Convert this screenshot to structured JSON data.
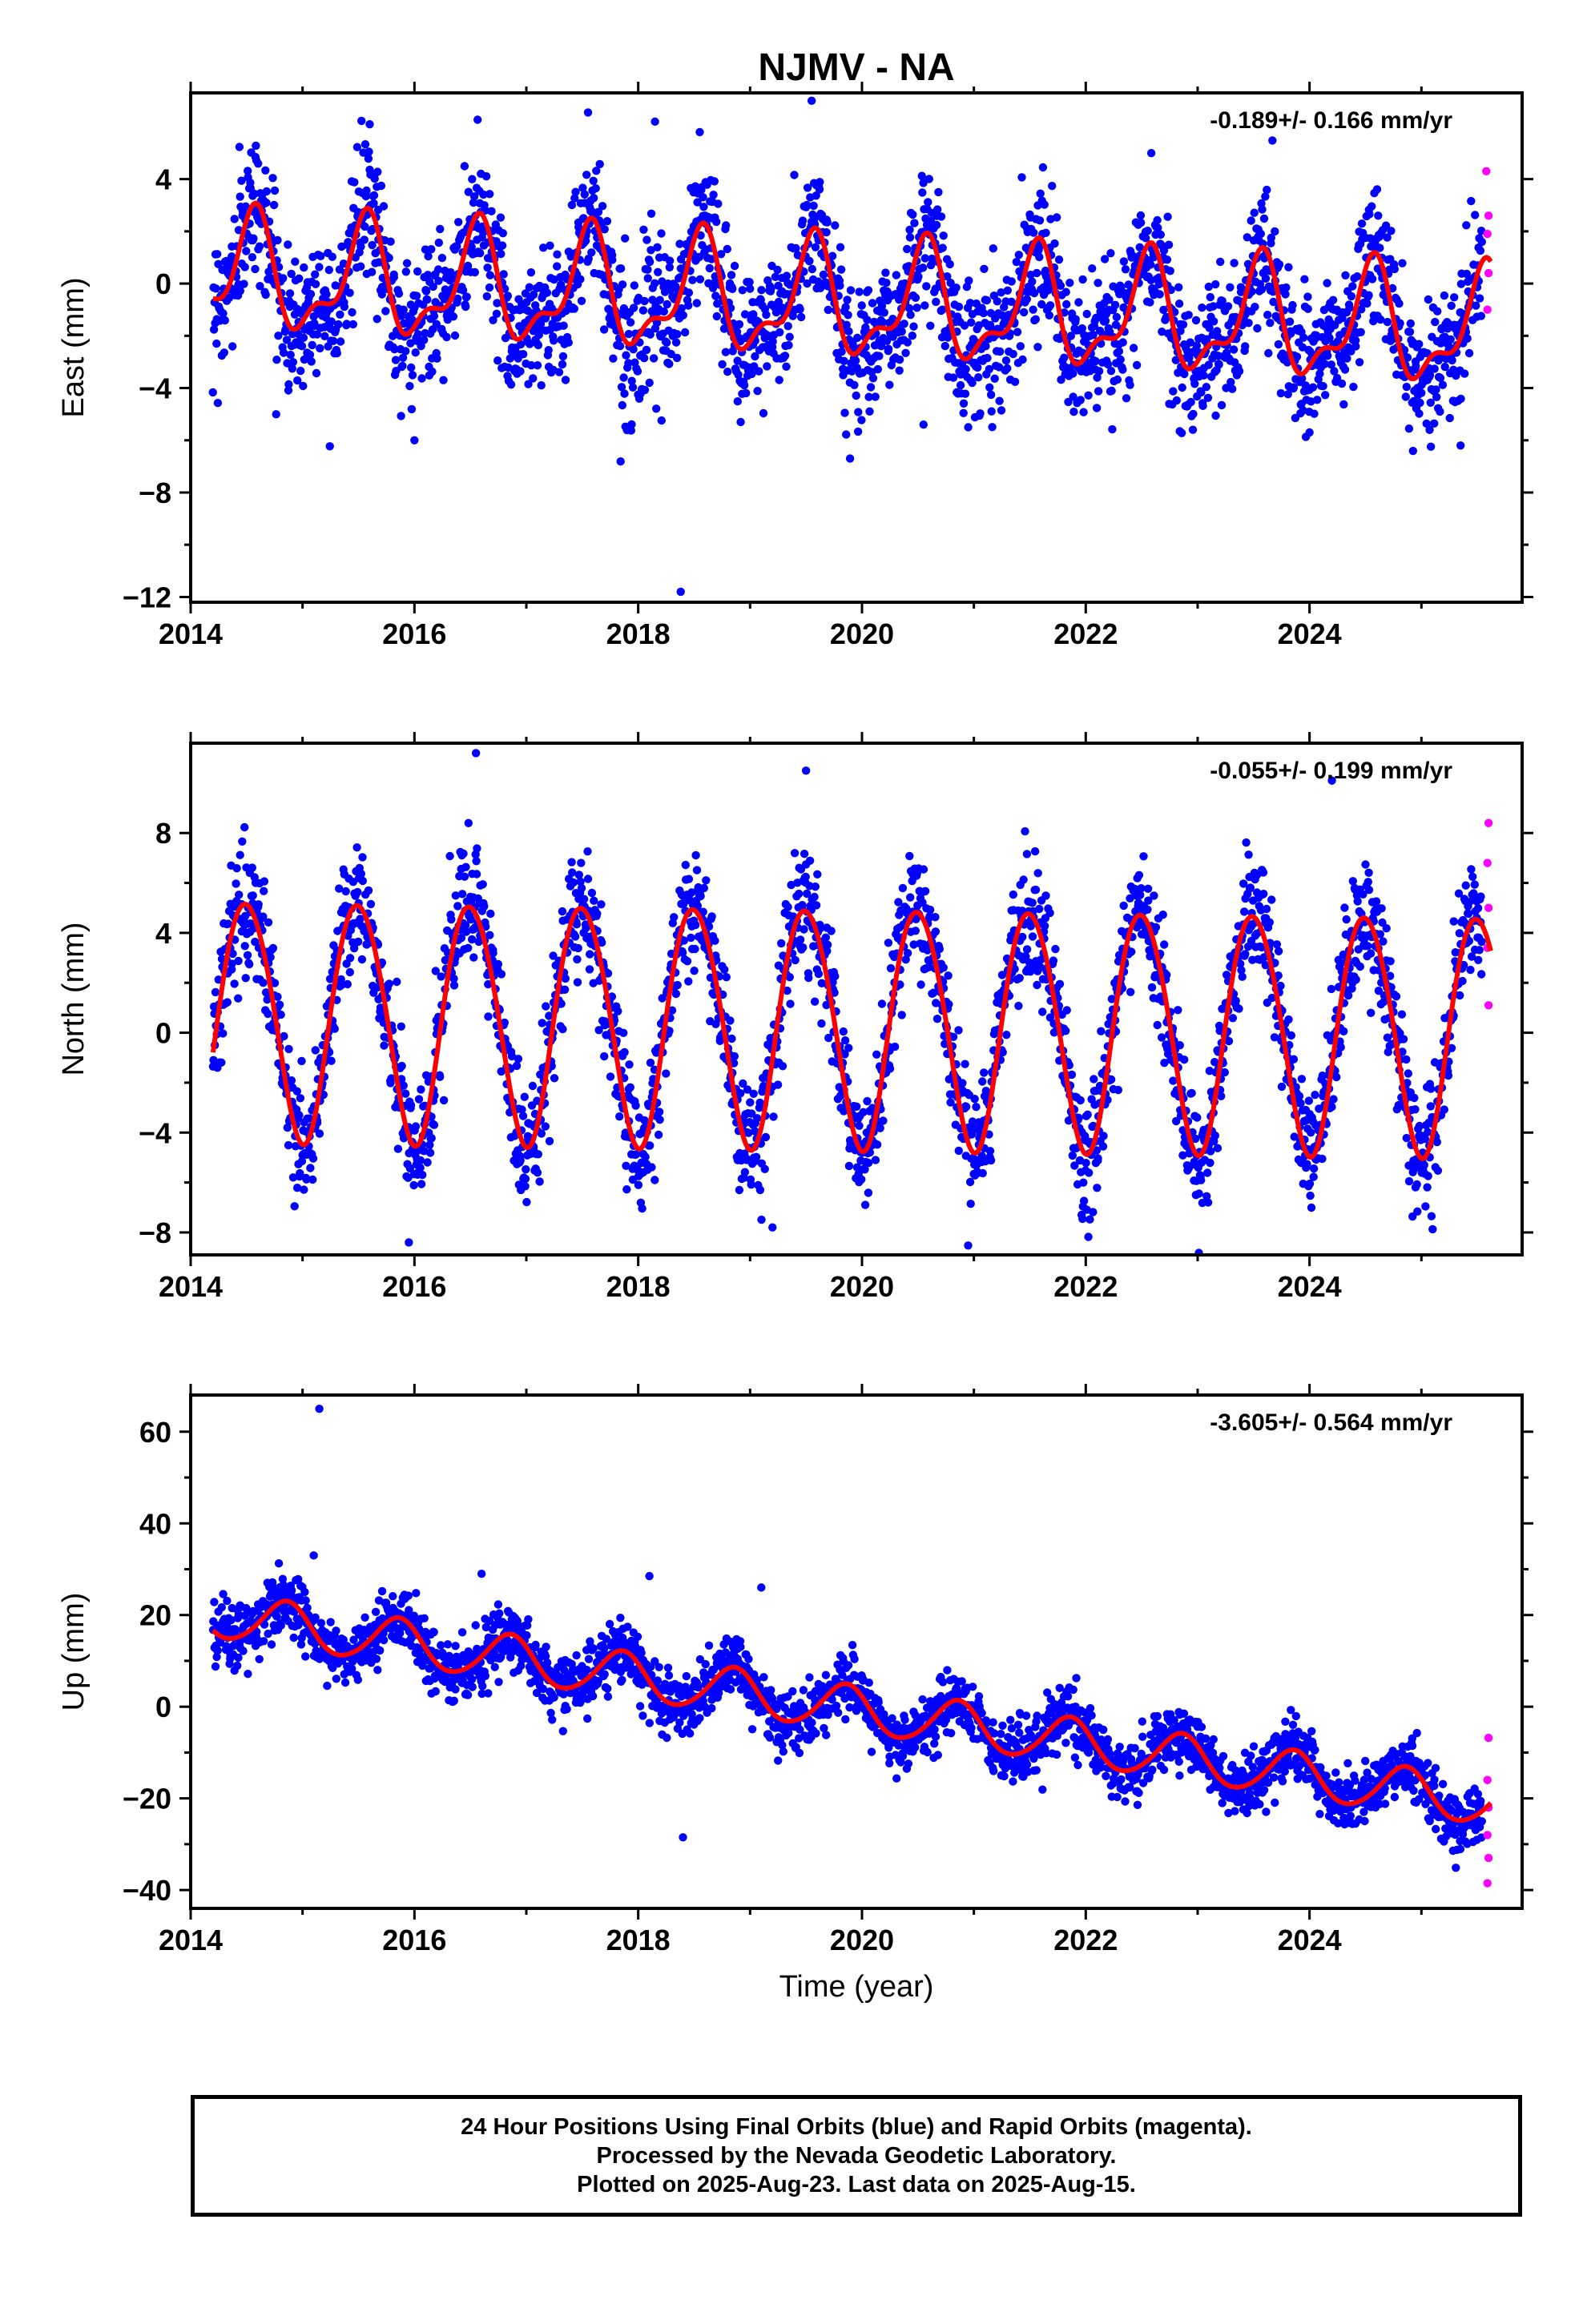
{
  "title": "NJMV - NA",
  "colors": {
    "final_orbits": "#0000ff",
    "rapid_orbits": "#ff00ff",
    "model_fit": "#ff0000",
    "axes": "#000000"
  },
  "chart_data": [
    {
      "type": "scatter",
      "panel": "east",
      "ylabel": "East (mm)",
      "xlabel": "",
      "rate_label": "-0.189+/- 0.166 mm/yr",
      "xlim": [
        2014.0,
        2025.9
      ],
      "ylim": [
        -12.2,
        7.3
      ],
      "xticks": [
        2014,
        2016,
        2018,
        2020,
        2022,
        2024
      ],
      "xticks_labels": [
        "2014",
        "2016",
        "2018",
        "2020",
        "2022",
        "2024"
      ],
      "yticks": [
        4,
        0,
        -4,
        -8,
        -12
      ],
      "yticks_labels": [
        "4",
        "0",
        "−4",
        "−8",
        "−12"
      ],
      "model": {
        "t0": 2014.2,
        "t1": 2025.62,
        "offset": 0.32,
        "rate": -0.189,
        "annual_amp": 2.0,
        "annual_phase_year": 2014.55,
        "semiannual_amp": 0.9,
        "semiannual_phase_year": 2014.6
      },
      "noise_sd": 1.3,
      "outliers": [
        [
          2015.6,
          6.1
        ],
        [
          2016.0,
          -6.0
        ],
        [
          2018.15,
          6.2
        ],
        [
          2018.38,
          -11.8
        ],
        [
          2018.55,
          5.8
        ],
        [
          2019.55,
          7.0
        ],
        [
          2020.55,
          -5.4
        ],
        [
          2024.0,
          -5.7
        ],
        [
          2025.35,
          -6.2
        ]
      ],
      "rapid_points": [
        [
          2025.58,
          4.3
        ],
        [
          2025.6,
          2.6
        ],
        [
          2025.59,
          1.9
        ],
        [
          2025.6,
          0.4
        ],
        [
          2025.59,
          -1.0
        ]
      ],
      "grid": false,
      "legend": "none"
    },
    {
      "type": "scatter",
      "panel": "north",
      "ylabel": "North (mm)",
      "xlabel": "",
      "rate_label": "-0.055+/- 0.199 mm/yr",
      "xlim": [
        2014.0,
        2025.9
      ],
      "ylim": [
        -8.9,
        11.6
      ],
      "xticks": [
        2014,
        2016,
        2018,
        2020,
        2022,
        2024
      ],
      "xticks_labels": [
        "2014",
        "2016",
        "2018",
        "2020",
        "2022",
        "2024"
      ],
      "yticks": [
        8,
        4,
        0,
        -4,
        -8
      ],
      "yticks_labels": [
        "8",
        "4",
        "0",
        "−4",
        "−8"
      ],
      "model": {
        "t0": 2014.2,
        "t1": 2025.62,
        "offset": 0.6,
        "rate": -0.055,
        "annual_amp": 4.8,
        "annual_phase_year": 2014.5,
        "semiannual_amp": 0.3,
        "semiannual_phase_year": 2014.3
      },
      "noise_sd": 1.2,
      "outliers": [
        [
          2016.55,
          11.2
        ],
        [
          2015.95,
          -8.4
        ],
        [
          2019.5,
          10.5
        ],
        [
          2019.2,
          -7.8
        ],
        [
          2024.2,
          10.1
        ],
        [
          2017.1,
          -5.6
        ]
      ],
      "rapid_points": [
        [
          2025.6,
          8.4
        ],
        [
          2025.59,
          6.8
        ],
        [
          2025.6,
          5.0
        ],
        [
          2025.59,
          3.4
        ],
        [
          2025.6,
          1.1
        ]
      ],
      "grid": false,
      "legend": "none"
    },
    {
      "type": "scatter",
      "panel": "up",
      "ylabel": "Up (mm)",
      "xlabel": "Time (year)",
      "rate_label": "-3.605+/- 0.564 mm/yr",
      "xlim": [
        2014.0,
        2025.9
      ],
      "ylim": [
        -44.0,
        68.0
      ],
      "xticks": [
        2014,
        2016,
        2018,
        2020,
        2022,
        2024
      ],
      "xticks_labels": [
        "2014",
        "2016",
        "2018",
        "2020",
        "2022",
        "2024"
      ],
      "yticks": [
        60,
        40,
        20,
        0,
        -20,
        -40
      ],
      "yticks_labels": [
        "60",
        "40",
        "20",
        "0",
        "−20",
        "−40"
      ],
      "model": {
        "t0": 2014.2,
        "t1": 2025.62,
        "offset": 20.0,
        "rate": -3.605,
        "annual_amp": 5.0,
        "annual_phase_year": 2014.85,
        "semiannual_amp": 0.5,
        "semiannual_phase_year": 2014.9
      },
      "noise_sd": 3.2,
      "outliers": [
        [
          2015.15,
          65.0
        ],
        [
          2015.1,
          33.0
        ],
        [
          2018.4,
          -28.5
        ],
        [
          2019.1,
          26.0
        ],
        [
          2018.1,
          28.5
        ],
        [
          2016.6,
          29.0
        ]
      ],
      "rapid_points": [
        [
          2025.6,
          -6.8
        ],
        [
          2025.59,
          -16.0
        ],
        [
          2025.6,
          -22.0
        ],
        [
          2025.59,
          -28.0
        ],
        [
          2025.6,
          -33.0
        ],
        [
          2025.59,
          -38.5
        ]
      ],
      "grid": false,
      "legend": "none"
    }
  ],
  "footer": {
    "line1": "24 Hour Positions Using Final Orbits (blue) and Rapid Orbits (magenta).",
    "line2": "Processed by the Nevada Geodetic Laboratory.",
    "line3": "Plotted on 2025-Aug-23. Last data on 2025-Aug-15."
  }
}
